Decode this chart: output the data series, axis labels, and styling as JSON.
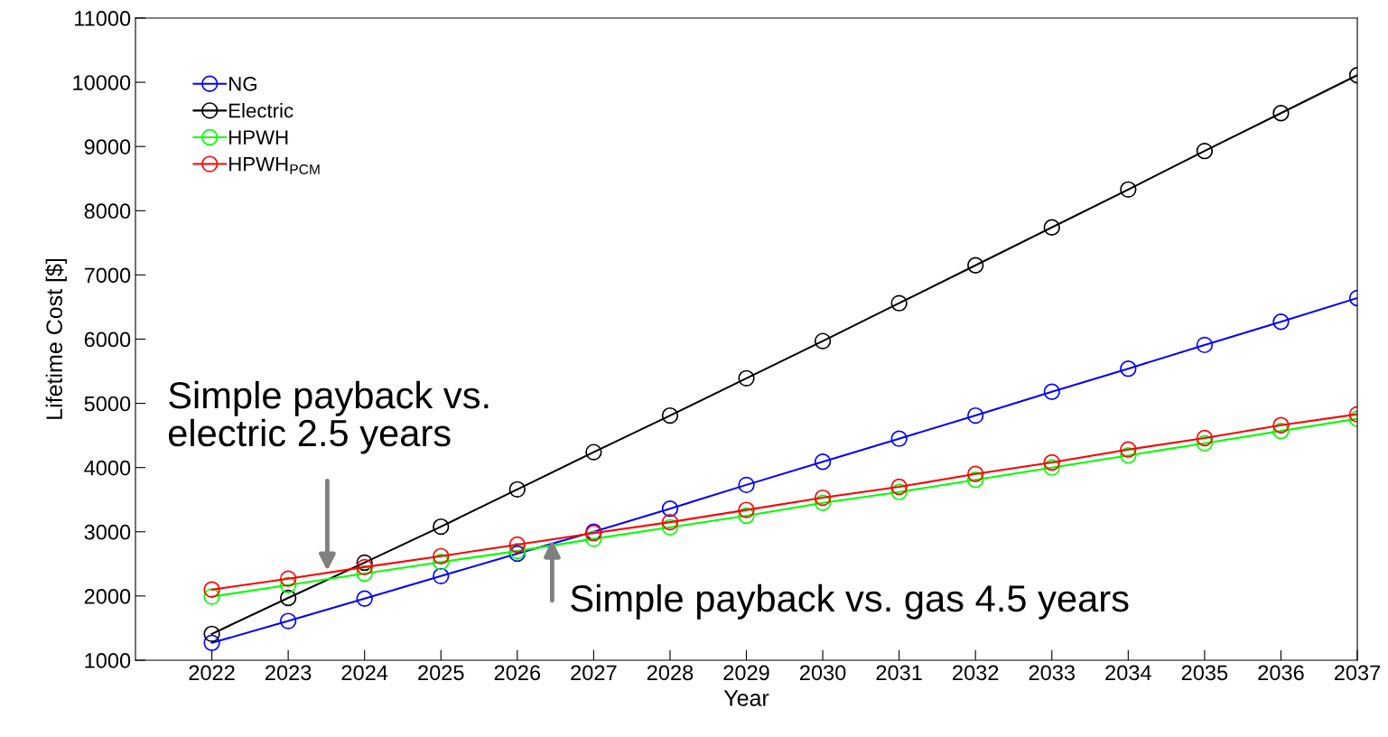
{
  "chart_data": {
    "type": "line",
    "xlabel": "Year",
    "ylabel": "Lifetime Cost [$]",
    "x": [
      2022,
      2023,
      2024,
      2025,
      2026,
      2027,
      2028,
      2029,
      2030,
      2031,
      2032,
      2033,
      2034,
      2035,
      2036,
      2037
    ],
    "series": [
      {
        "name": "NG",
        "color": "#0000ff",
        "values": [
          1270,
          1610,
          1960,
          2310,
          2660,
          3000,
          3360,
          3730,
          4090,
          4450,
          4810,
          5180,
          5540,
          5910,
          6270,
          6640
        ]
      },
      {
        "name": "Electric",
        "color": "#000000",
        "values": [
          1410,
          1970,
          2520,
          3080,
          3660,
          4240,
          4810,
          5390,
          5970,
          6560,
          7150,
          7740,
          8330,
          8930,
          9520,
          10110
        ]
      },
      {
        "name": "HPWH",
        "color": "#00ff00",
        "values": [
          1990,
          2170,
          2350,
          2530,
          2700,
          2890,
          3070,
          3250,
          3450,
          3620,
          3810,
          4000,
          4190,
          4380,
          4570,
          4760
        ]
      },
      {
        "name": "HPWH$_{PCM}$",
        "color": "#ff0000",
        "values": [
          2100,
          2270,
          2450,
          2620,
          2800,
          2980,
          3150,
          3340,
          3530,
          3700,
          3900,
          4080,
          4280,
          4460,
          4660,
          4830
        ]
      }
    ],
    "xlim": [
      2021,
      2037
    ],
    "xticks": [
      2022,
      2023,
      2024,
      2025,
      2026,
      2027,
      2028,
      2029,
      2030,
      2031,
      2032,
      2033,
      2034,
      2035,
      2036,
      2037
    ],
    "ylim": [
      1000,
      11000
    ],
    "yticks": [
      1000,
      2000,
      3000,
      4000,
      5000,
      6000,
      7000,
      8000,
      9000,
      10000,
      11000
    ],
    "annotations": [
      "Simple payback vs.\nelectric 2.5 years",
      "Simple payback vs. gas 4.5 years"
    ],
    "legend": "top left",
    "marker": "circle",
    "line_style": "solid",
    "grid": false
  }
}
